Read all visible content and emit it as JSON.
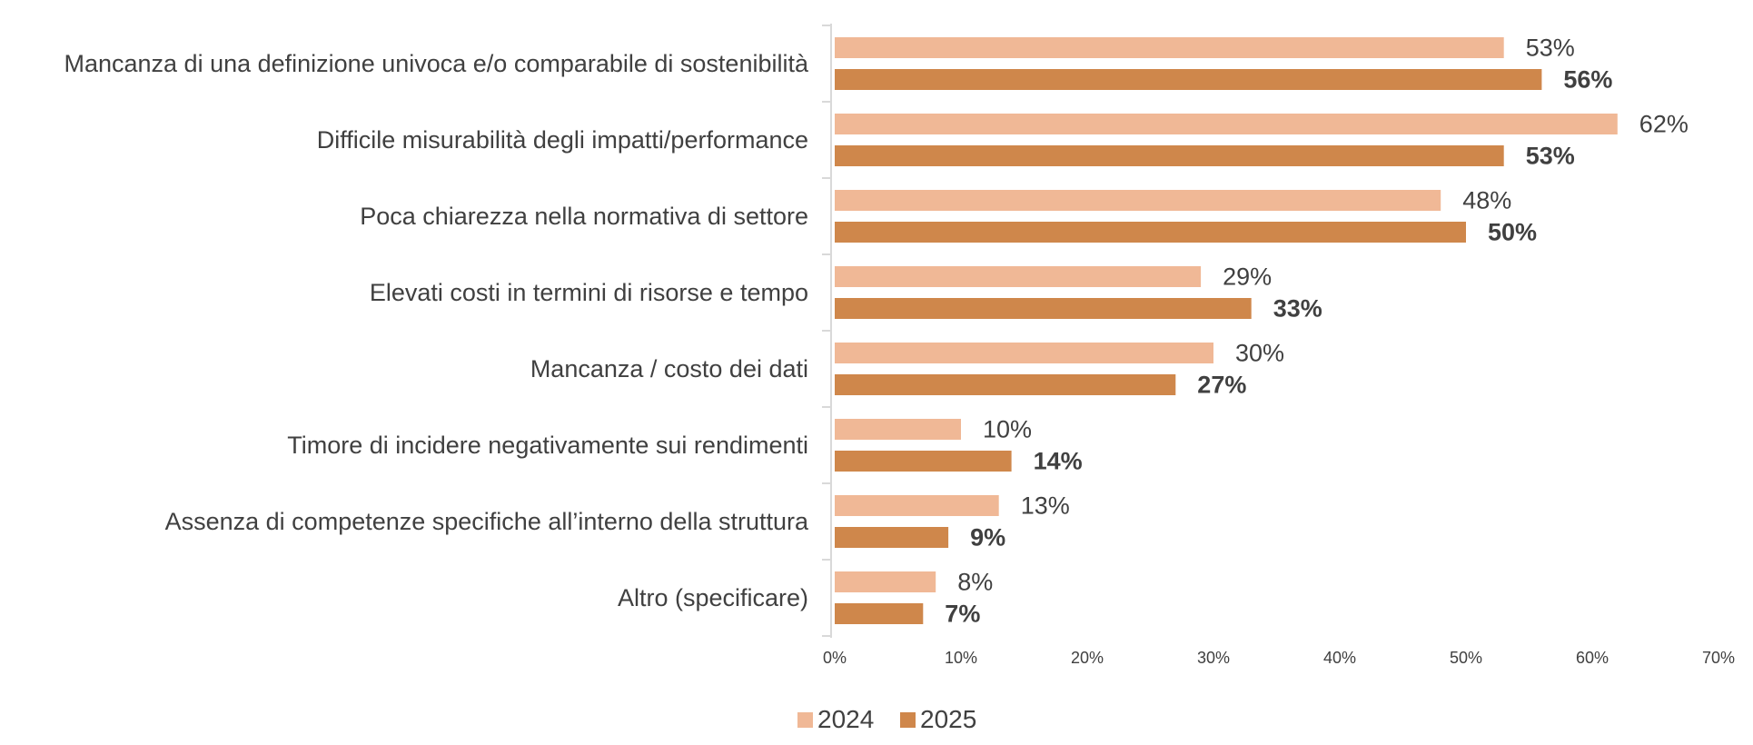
{
  "chart_data": {
    "type": "bar",
    "orientation": "horizontal",
    "categories": [
      "Mancanza di una definizione univoca e/o comparabile di sostenibilità",
      "Difficile misurabilità degli impatti/performance",
      "Poca chiarezza nella normativa di settore",
      "Elevati costi in termini di risorse e tempo",
      "Mancanza / costo dei dati",
      "Timore di incidere negativamente sui rendimenti",
      "Assenza di competenze specifiche all’interno della struttura",
      "Altro (specificare)"
    ],
    "series": [
      {
        "name": "2024",
        "color": "#F0B896",
        "values": [
          53,
          62,
          48,
          29,
          30,
          10,
          13,
          8
        ],
        "labels": [
          "53%",
          "62%",
          "48%",
          "29%",
          "30%",
          "10%",
          "13%",
          "8%"
        ]
      },
      {
        "name": "2025",
        "color": "#CF874B",
        "values": [
          56,
          53,
          50,
          33,
          27,
          14,
          9,
          7
        ],
        "labels": [
          "56%",
          "53%",
          "50%",
          "33%",
          "27%",
          "14%",
          "9%",
          "7%"
        ]
      }
    ],
    "xlim": [
      0,
      70
    ],
    "xticks": [
      0,
      10,
      20,
      30,
      40,
      50,
      60,
      70
    ],
    "xtick_labels": [
      "0%",
      "10%",
      "20%",
      "30%",
      "40%",
      "50%",
      "60%",
      "70%"
    ],
    "title": "",
    "xlabel": "",
    "ylabel": "",
    "grid": false,
    "legend": [
      "2024",
      "2025"
    ],
    "legend_position": "bottom"
  }
}
